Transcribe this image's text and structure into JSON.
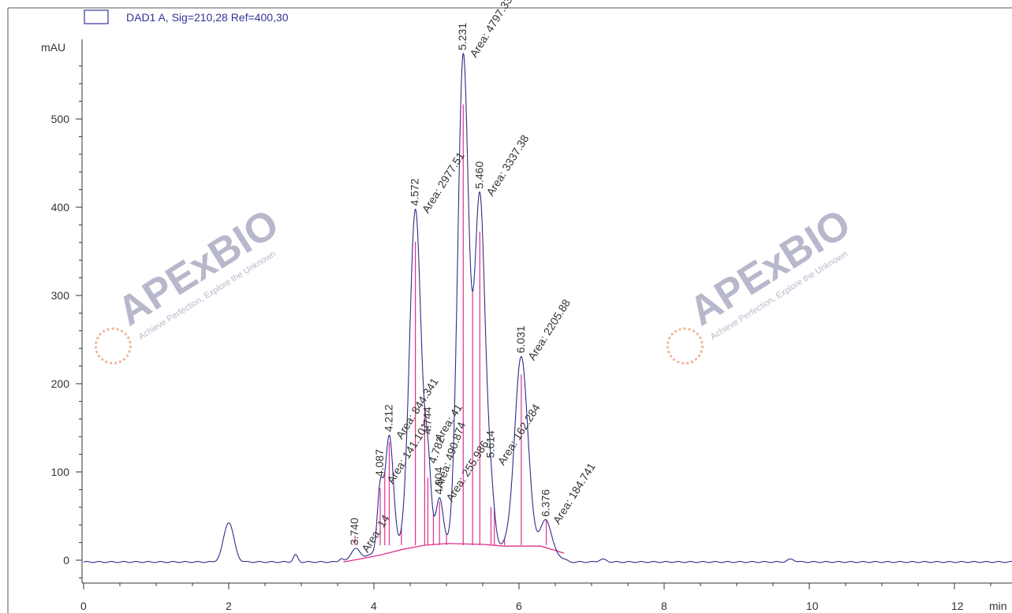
{
  "chart_data": {
    "type": "line",
    "legend": {
      "label": "DAD1 A, Sig=210,28 Ref=400,30",
      "position": "top-left"
    },
    "ylabel": "mAU",
    "xlabel": "min",
    "xlim": [
      0,
      13.1
    ],
    "ylim": [
      -30,
      580
    ],
    "x_ticks": [
      0,
      2,
      4,
      6,
      8,
      10,
      12
    ],
    "y_ticks": [
      0,
      100,
      200,
      300,
      400,
      500
    ],
    "grid": false,
    "colors": {
      "trace": "#2d2d8a",
      "baseline": "#e0308a",
      "legend_box": "#333399",
      "axis": "#333333",
      "watermark": "#b0b0c8",
      "watermark_accent": "#f2a88a"
    },
    "peaks": [
      {
        "rt": 3.74,
        "height": 12,
        "width": 0.06,
        "rt_label": "3.740",
        "area_label": "Area: 14"
      },
      {
        "rt": 4.087,
        "height": 72,
        "width": 0.04,
        "rt_label": "4.087",
        "area_label": "Area: 141.101"
      },
      {
        "rt": 4.212,
        "height": 130,
        "width": 0.055,
        "rt_label": "4.212",
        "area_label": "Area: 844.341"
      },
      {
        "rt": 4.572,
        "height": 382,
        "width": 0.08,
        "rt_label": "4.572",
        "area_label": "Area: 2977.51"
      },
      {
        "rt": 4.744,
        "height": 85,
        "width": 0.045,
        "rt_label": "4.744",
        "area_label": "Area: 41"
      },
      {
        "rt": 4.904,
        "height": 55,
        "width": 0.05,
        "rt_label": "4.904",
        "area_label": "Area: 255.986"
      },
      {
        "rt": 5.231,
        "height": 555,
        "width": 0.075,
        "rt_label": "5.231",
        "area_label": "Area: 4797.33"
      },
      {
        "rt": 5.46,
        "height": 395,
        "width": 0.075,
        "rt_label": "5.460",
        "area_label": "Area: 3337.38"
      },
      {
        "rt": 5.614,
        "height": 48,
        "width": 0.05,
        "rt_label": "5.614",
        "area_label": "Area: 162.284"
      },
      {
        "rt": 6.031,
        "height": 215,
        "width": 0.09,
        "rt_label": "6.031",
        "area_label": "Area: 2205.88"
      },
      {
        "rt": 6.376,
        "height": 33,
        "width": 0.07,
        "rt_label": "6.376",
        "area_label": "Area: 184.741"
      }
    ],
    "minor_peaks": [
      {
        "rt": 2.0,
        "height": 45,
        "width": 0.07
      },
      {
        "rt": 2.92,
        "height": 8,
        "width": 0.03
      },
      {
        "rt": 3.55,
        "height": 4,
        "width": 0.03
      },
      {
        "rt": 7.15,
        "height": 3,
        "width": 0.05
      },
      {
        "rt": 9.75,
        "height": 3,
        "width": 0.05
      }
    ],
    "extra_labels": [
      {
        "rt": 4.782,
        "label": "4.782"
      },
      {
        "rt": 4.874,
        "label": "Area: 490.874"
      }
    ],
    "baseline_segments": [
      [
        3.58,
        -2,
        3.85,
        2,
        4.1,
        6,
        4.38,
        12,
        4.7,
        17,
        5.0,
        19,
        5.5,
        18,
        5.8,
        16,
        6.3,
        16,
        6.62,
        8
      ]
    ],
    "drop_lines": [
      4.15,
      4.38,
      4.7,
      4.82,
      5.0,
      5.36,
      5.66,
      5.8
    ]
  },
  "watermark": {
    "brand": "APExBIO",
    "tagline": "Achieve Perfection, Explore the Unknown"
  }
}
